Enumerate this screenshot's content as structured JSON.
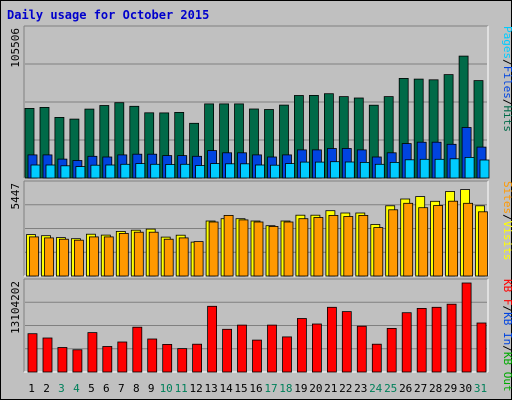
{
  "chart_data": {
    "type": "bar",
    "title": "Daily usage for October 2015",
    "categories": [
      "1",
      "2",
      "3",
      "4",
      "5",
      "6",
      "7",
      "8",
      "9",
      "10",
      "11",
      "12",
      "13",
      "14",
      "15",
      "16",
      "17",
      "18",
      "19",
      "20",
      "21",
      "22",
      "23",
      "24",
      "25",
      "26",
      "27",
      "28",
      "29",
      "30",
      "31"
    ],
    "weekend_days": [
      "3",
      "4",
      "10",
      "11",
      "17",
      "18",
      "24",
      "25",
      "31"
    ],
    "panels": [
      {
        "name": "hits-files-pages",
        "ylim": [
          0,
          105506
        ],
        "ytick_label": "105506",
        "right_labels": [
          "Pages",
          "/",
          "Files",
          "/",
          "Hits"
        ],
        "series": [
          {
            "name": "Hits",
            "color": "#006A48",
            "values": [
              49600,
              50300,
              43200,
              42000,
              49100,
              51700,
              53700,
              51100,
              46500,
              46400,
              46800,
              39000,
              52800,
              52800,
              52800,
              49200,
              48800,
              52000,
              58800,
              58900,
              60100,
              58000,
              57000,
              51900,
              58000,
              71000,
              70500,
              70000,
              73700,
              86900,
              69400
            ]
          },
          {
            "name": "Files",
            "color": "#0044E0",
            "values": [
              16500,
              16500,
              13500,
              12500,
              15500,
              15000,
              16500,
              17000,
              17000,
              16000,
              16000,
              15500,
              19500,
              18000,
              18000,
              16500,
              15000,
              16500,
              20000,
              20000,
              21000,
              21000,
              20000,
              15000,
              18000,
              24500,
              25500,
              25500,
              24000,
              36000,
              22000
            ]
          },
          {
            "name": "Pages",
            "color": "#00CCFF",
            "values": [
              9300,
              9300,
              8700,
              8100,
              9100,
              9300,
              9800,
              10300,
              9800,
              9600,
              9800,
              8900,
              10300,
              10100,
              10100,
              9300,
              9100,
              10300,
              11300,
              11300,
              11600,
              11400,
              11100,
              9800,
              11100,
              13000,
              13300,
              13300,
              13700,
              14700,
              12800
            ]
          }
        ]
      },
      {
        "name": "visits-sites",
        "ylim": [
          0,
          5447
        ],
        "ytick_label": "5447",
        "right_labels": [
          "Sites",
          "/",
          "Visits"
        ],
        "series": [
          {
            "name": "Visits",
            "color": "#FFFF00",
            "values": [
              2480,
              2410,
              2300,
              2230,
              2500,
              2450,
              2670,
              2740,
              2810,
              2330,
              2440,
              2030,
              3290,
              3430,
              3430,
              3290,
              3010,
              3290,
              3640,
              3640,
              3910,
              3770,
              3770,
              3080,
              4200,
              4610,
              4750,
              4470,
              5060,
              5170,
              4200
            ]
          },
          {
            "name": "Sites",
            "color": "#FF9900",
            "values": [
              2340,
              2280,
              2200,
              2140,
              2340,
              2340,
              2550,
              2620,
              2620,
              2200,
              2280,
              2060,
              3230,
              3630,
              3360,
              3230,
              2970,
              3230,
              3430,
              3500,
              3630,
              3560,
              3630,
              2900,
              3960,
              4350,
              4090,
              4220,
              4480,
              4350,
              3840
            ]
          }
        ]
      },
      {
        "name": "kbytes",
        "ylim": [
          0,
          13104202
        ],
        "ytick_label": "13104202",
        "right_labels": [
          "KB F",
          "/",
          "KB In",
          "/",
          "KB Out"
        ],
        "series": [
          {
            "name": "KB F",
            "color": "#FF0000",
            "values": [
              5640000,
              5010000,
              3610000,
              3270000,
              5800000,
              3760000,
              4410000,
              6590000,
              4860000,
              4070000,
              3440000,
              4090000,
              9680000,
              6280000,
              6910000,
              4700000,
              6910000,
              5170000,
              7880000,
              7070000,
              9530000,
              8890000,
              6750000,
              4090000,
              6420000,
              8730000,
              9370000,
              9530000,
              9990000,
              13104202,
              7210000
            ]
          }
        ]
      }
    ]
  }
}
